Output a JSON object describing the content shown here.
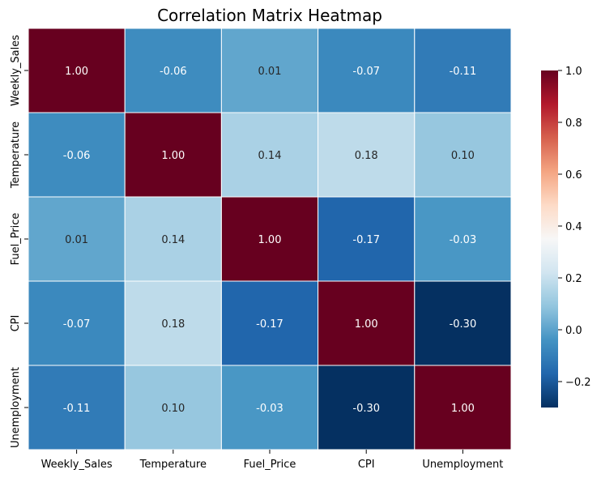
{
  "chart_data": {
    "type": "heatmap",
    "title": "Correlation Matrix Heatmap",
    "x_labels": [
      "Weekly_Sales",
      "Temperature",
      "Fuel_Price",
      "CPI",
      "Unemployment"
    ],
    "y_labels": [
      "Weekly_Sales",
      "Temperature",
      "Fuel_Price",
      "CPI",
      "Unemployment"
    ],
    "values": [
      [
        1.0,
        -0.06,
        0.01,
        -0.07,
        -0.11
      ],
      [
        -0.06,
        1.0,
        0.14,
        0.18,
        0.1
      ],
      [
        0.01,
        0.14,
        1.0,
        -0.17,
        -0.03
      ],
      [
        -0.07,
        0.18,
        -0.17,
        1.0,
        -0.3
      ],
      [
        -0.11,
        0.1,
        -0.03,
        -0.3,
        1.0
      ]
    ],
    "value_format": "0.00",
    "colormap": "RdBu_r",
    "vmin": -0.3,
    "vmax": 1.0,
    "colorbar_ticks": [
      -0.2,
      0.0,
      0.2,
      0.4,
      0.6,
      0.8,
      1.0
    ],
    "colorbar_tick_labels": [
      "−0.2",
      "0.0",
      "0.2",
      "0.4",
      "0.6",
      "0.8",
      "1.0"
    ],
    "grid_lines": "white"
  }
}
